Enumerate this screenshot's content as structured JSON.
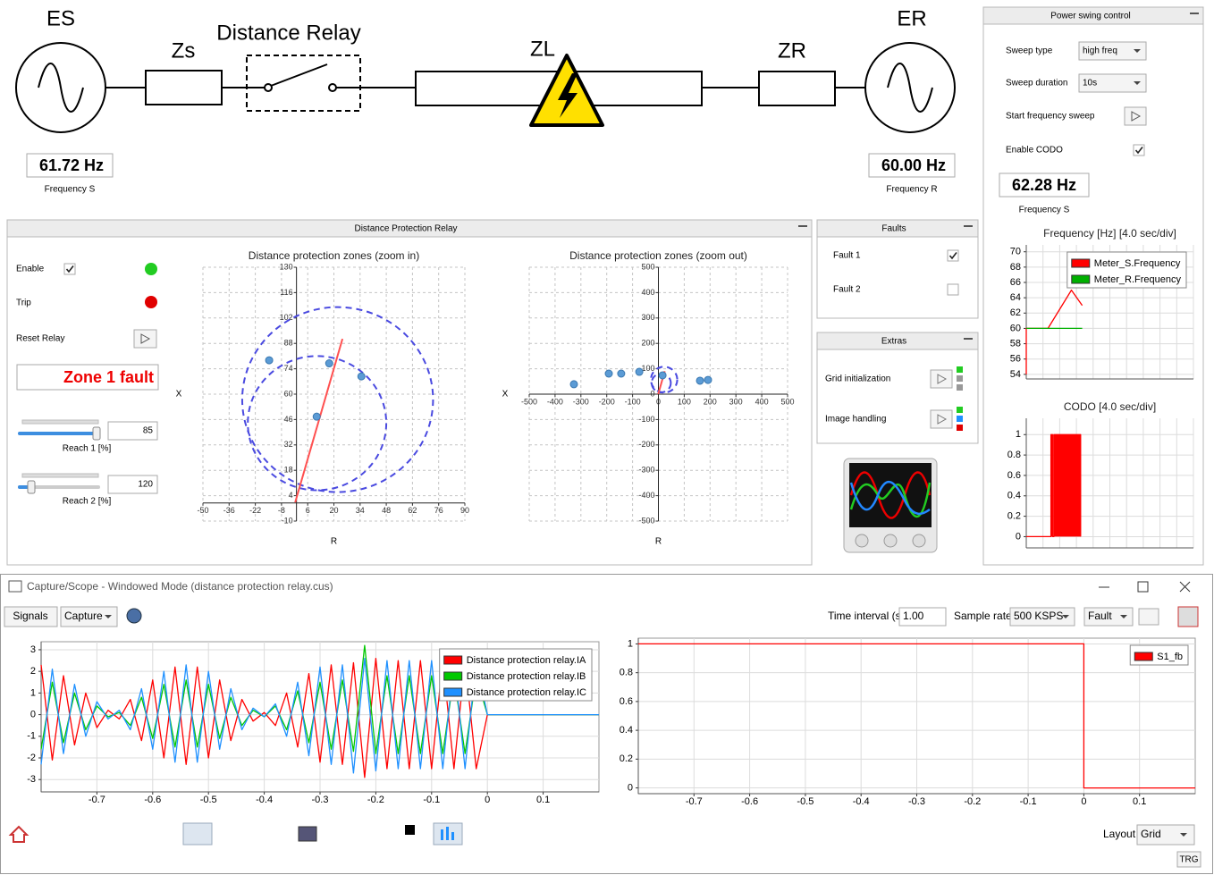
{
  "circuit": {
    "source_s": "ES",
    "zs": "Zs",
    "relay": "Distance Relay",
    "line": "ZL",
    "zr": "ZR",
    "source_r": "ER",
    "freq_s": {
      "value": "61.72 Hz",
      "label": "Frequency S"
    },
    "freq_r": {
      "value": "60.00 Hz",
      "label": "Frequency R"
    }
  },
  "power_swing": {
    "title": "Power swing control",
    "sweep_type": {
      "label": "Sweep type",
      "value": "high freq"
    },
    "sweep_duration": {
      "label": "Sweep duration",
      "value": "10s"
    },
    "start_sweep": "Start frequency sweep",
    "enable_codo": {
      "label": "Enable CODO",
      "checked": true
    },
    "freq_display": {
      "value": "62.28 Hz",
      "label": "Frequency S"
    }
  },
  "relay_panel": {
    "title": "Distance Protection Relay",
    "enable": {
      "label": "Enable",
      "checked": true,
      "led": "#22cc22"
    },
    "trip": {
      "label": "Trip",
      "led": "#e00000"
    },
    "reset": "Reset Relay",
    "status": "Zone 1 fault",
    "reach1": {
      "value": 85,
      "label": "Reach 1 [%]"
    },
    "reach2": {
      "value": 120,
      "label": "Reach 2 [%]"
    }
  },
  "faults_panel": {
    "title": "Faults",
    "items": [
      {
        "label": "Fault 1",
        "checked": true
      },
      {
        "label": "Fault 2",
        "checked": false
      }
    ]
  },
  "extras_panel": {
    "title": "Extras",
    "items": [
      "Grid initialization",
      "Image handling"
    ]
  },
  "scope": {
    "title": "Capture/Scope - Windowed Mode (distance protection relay.cus)",
    "signals": "Signals",
    "capture": "Capture",
    "time_interval": {
      "label": "Time interval (s)",
      "value": "1.00"
    },
    "sample_rate": {
      "label": "Sample rate",
      "value": "500 KSPS"
    },
    "trigger": "Fault",
    "layout": {
      "label": "Layout",
      "value": "Grid"
    },
    "status": "TRG"
  },
  "chart_data": [
    {
      "type": "scatter",
      "title": "Distance protection zones (zoom in)",
      "x_label": "R",
      "y_label": "X",
      "xlim": [
        -50,
        90
      ],
      "ylim": [
        -10,
        130
      ],
      "xticks": [
        -50,
        -36,
        -22,
        -8,
        6,
        20,
        34,
        48,
        62,
        76,
        90
      ],
      "yticks": [
        -10,
        4,
        18,
        32,
        46,
        60,
        74,
        88,
        102,
        116,
        130
      ],
      "grid": true,
      "grid_style": "dashed",
      "axes_cross_origin": true,
      "x": [
        -14.6,
        17.5,
        34.7,
        10.8
      ],
      "y": [
        78.7,
        77,
        69.8,
        47.6
      ],
      "color": "#5b9bd5",
      "line": {
        "x": [
          -0.7,
          24.6
        ],
        "y": [
          0.3,
          90.5
        ],
        "color": "#ff5050"
      },
      "zones": {
        "color": "#4a4ae0",
        "circles": [
          {
            "center": [
              22,
              57
            ],
            "radius": 51
          },
          {
            "center": [
              11,
              44
            ],
            "radius": 37
          }
        ]
      }
    },
    {
      "type": "scatter",
      "title": "Distance protection zones (zoom out)",
      "x_label": "R",
      "y_label": "X",
      "xlim": [
        -500,
        500
      ],
      "ylim": [
        -500,
        500
      ],
      "xticks": [
        -500,
        -400,
        -300,
        -200,
        -100,
        0,
        100,
        200,
        300,
        400,
        500
      ],
      "yticks": [
        -500,
        -400,
        -300,
        -200,
        -100,
        0,
        100,
        200,
        300,
        400,
        500
      ],
      "grid": true,
      "grid_style": "dashed",
      "axes_cross_origin": true,
      "x": [
        -327,
        -192,
        -144,
        -74,
        16,
        161,
        192
      ],
      "y": [
        39,
        81,
        81,
        88,
        74,
        53,
        56
      ],
      "color": "#5b9bd5",
      "line": {
        "x": [
          -0.7,
          24.6
        ],
        "y": [
          0.3,
          90.5
        ],
        "color": "#ff5050"
      },
      "zones": {
        "color": "#4a4ae0",
        "circles": [
          {
            "center": [
              22,
              57
            ],
            "radius": 51
          },
          {
            "center": [
              11,
              44
            ],
            "radius": 37
          }
        ]
      }
    },
    {
      "type": "line",
      "title": "Frequency [Hz] [4.0 sec/div]",
      "xlim": [
        0,
        40
      ],
      "ylim": [
        53.4,
        70.9
      ],
      "yticks": [
        54,
        56,
        58,
        60,
        62,
        64,
        66,
        68,
        70
      ],
      "xgrid": [
        0,
        4,
        8,
        12,
        16,
        20,
        24,
        28,
        32,
        36,
        40
      ],
      "grid": true,
      "grid_style": "solid",
      "legend": "upper right",
      "series": [
        {
          "name": "Meter_S.Frequency",
          "color": "#ff0000",
          "x": [
            0,
            0,
            5.2,
            10.8,
            13.4
          ],
          "values": [
            54,
            60,
            60,
            65,
            63
          ]
        },
        {
          "name": "Meter_R.Frequency",
          "color": "#00b000",
          "x": [
            0,
            13.4
          ],
          "values": [
            60,
            60
          ]
        }
      ]
    },
    {
      "type": "line",
      "title": "CODO [4.0 sec/div]",
      "xlim": [
        0,
        40
      ],
      "ylim": [
        -0.11,
        1.16
      ],
      "yticks": [
        0,
        0.2,
        0.4,
        0.6,
        0.8,
        1
      ],
      "xgrid": [
        0,
        4,
        8,
        12,
        16,
        20,
        24,
        28,
        32,
        36,
        40
      ],
      "grid": true,
      "grid_style": "solid",
      "fill": true,
      "series": [
        {
          "color": "#ff0000",
          "x": [
            0,
            5.9,
            5.9,
            6.3,
            6.3,
            6.6,
            6.6,
            13,
            13
          ],
          "values": [
            0,
            0,
            1,
            1,
            0,
            0,
            1,
            1,
            0
          ]
        }
      ]
    },
    {
      "type": "line",
      "xlim": [
        -0.8,
        0.2
      ],
      "ylim": [
        -3.57,
        3.37
      ],
      "xticks": [
        -0.7,
        -0.6,
        -0.5,
        -0.4,
        -0.3,
        -0.2,
        -0.1,
        0,
        0.1
      ],
      "yticks": [
        -3,
        -2,
        -1,
        0,
        1,
        2,
        3
      ],
      "grid": true,
      "grid_style": "solid",
      "legend": "upper right",
      "x": [
        -0.8,
        -0.78,
        -0.76,
        -0.74,
        -0.72,
        -0.7,
        -0.68,
        -0.66,
        -0.64,
        -0.62,
        -0.6,
        -0.58,
        -0.56,
        -0.54,
        -0.52,
        -0.5,
        -0.48,
        -0.46,
        -0.44,
        -0.42,
        -0.4,
        -0.38,
        -0.36,
        -0.34,
        -0.32,
        -0.3,
        -0.28,
        -0.26,
        -0.24,
        -0.22,
        -0.2,
        -0.18,
        -0.16,
        -0.14,
        -0.12,
        -0.1,
        -0.08,
        -0.06,
        -0.04,
        -0.02,
        0,
        0.2
      ],
      "series": [
        {
          "name": "Distance protection relay.IA",
          "color": "#ff0000",
          "values": [
            2.3,
            -2.1,
            1.8,
            -1.4,
            1.0,
            -0.6,
            0.2,
            -0.2,
            0.7,
            -1.2,
            1.6,
            -2.0,
            2.2,
            -2.3,
            2.2,
            -2.0,
            1.6,
            -1.2,
            0.7,
            -0.3,
            0.1,
            -0.5,
            1.0,
            -1.5,
            1.9,
            -2.2,
            2.3,
            -2.3,
            2.4,
            -2.9,
            2.6,
            -2.5,
            2.5,
            -2.5,
            2.5,
            -2.5,
            2.5,
            -2.5,
            2.5,
            -2.5,
            0,
            0
          ]
        },
        {
          "name": "Distance protection relay.IB",
          "color": "#00c800",
          "values": [
            -1.6,
            1.5,
            -1.3,
            1.0,
            -0.7,
            0.4,
            -0.1,
            0.1,
            -0.5,
            0.8,
            -1.1,
            1.4,
            -1.5,
            1.6,
            -1.5,
            1.4,
            -1.1,
            0.8,
            -0.5,
            0.2,
            -0.1,
            0.4,
            -0.7,
            1.1,
            -1.3,
            1.5,
            -1.6,
            1.6,
            -1.7,
            3.2,
            -1.8,
            1.8,
            -1.8,
            1.8,
            -1.8,
            1.8,
            -1.8,
            1.8,
            -1.8,
            1.8,
            0,
            0
          ]
        },
        {
          "name": "Distance protection relay.IC",
          "color": "#1e90ff",
          "values": [
            -2.3,
            2.1,
            -1.8,
            1.4,
            -1.0,
            0.6,
            -0.2,
            0.2,
            -0.7,
            1.2,
            -1.6,
            2.0,
            -2.2,
            2.3,
            -2.2,
            2.0,
            -1.6,
            1.2,
            -0.7,
            0.3,
            -0.1,
            0.5,
            -1.0,
            1.5,
            -1.9,
            2.2,
            -2.3,
            2.3,
            -2.7,
            2.6,
            -2.6,
            2.5,
            -2.5,
            2.5,
            -2.5,
            2.5,
            -2.5,
            2.5,
            -2.5,
            2.5,
            0,
            0
          ]
        }
      ]
    },
    {
      "type": "line",
      "xlim": [
        -0.8,
        0.2
      ],
      "ylim": [
        -0.04,
        1.04
      ],
      "xticks": [
        -0.7,
        -0.6,
        -0.5,
        -0.4,
        -0.3,
        -0.2,
        -0.1,
        0,
        0.1
      ],
      "yticks": [
        0,
        0.2,
        0.4,
        0.6,
        0.8,
        1
      ],
      "grid": true,
      "grid_style": "solid",
      "legend": "upper right",
      "series": [
        {
          "name": "S1_fb",
          "color": "#ff0000",
          "x": [
            -0.8,
            0,
            0,
            0.2
          ],
          "values": [
            1,
            1,
            0,
            0
          ]
        }
      ]
    }
  ]
}
